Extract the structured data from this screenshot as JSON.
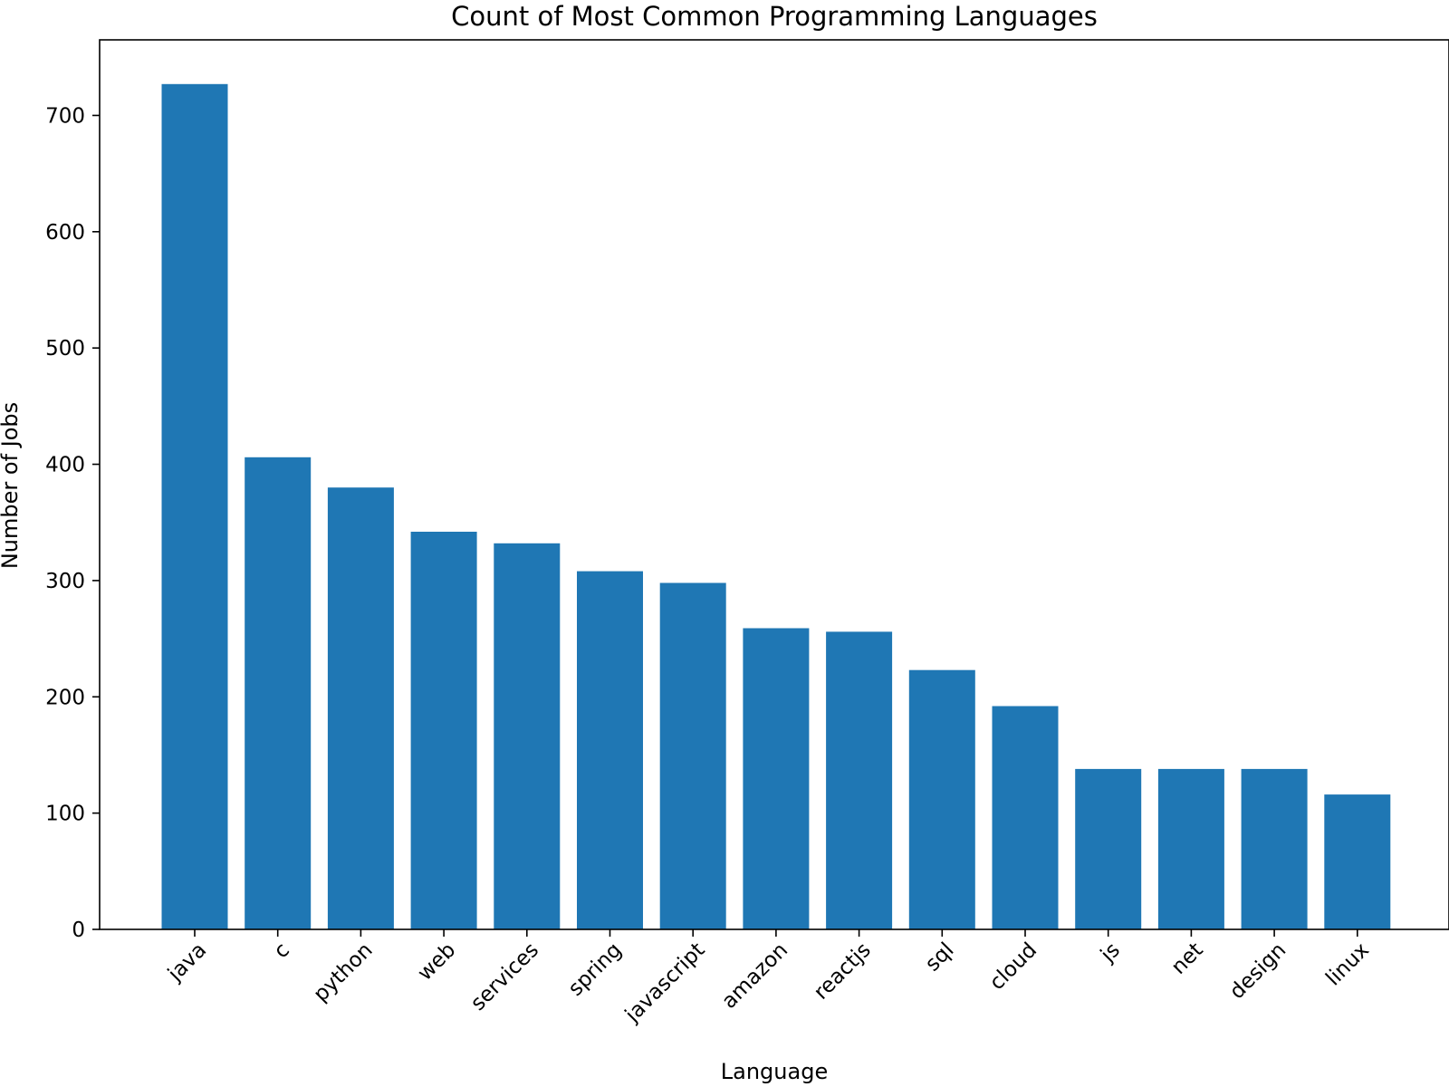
{
  "chart_data": {
    "type": "bar",
    "title": "Count of Most Common Programming Languages",
    "xlabel": "Language",
    "ylabel": "Number of Jobs",
    "categories": [
      "java",
      "c",
      "python",
      "web",
      "services",
      "spring",
      "javascript",
      "amazon",
      "reactjs",
      "sql",
      "cloud",
      "js",
      "net",
      "design",
      "linux"
    ],
    "values": [
      727,
      406,
      380,
      342,
      332,
      308,
      298,
      259,
      256,
      223,
      192,
      138,
      138,
      138,
      116
    ],
    "ylim": [
      0,
      765
    ],
    "yticks": [
      0,
      100,
      200,
      300,
      400,
      500,
      600,
      700
    ],
    "grid": false,
    "bar_color": "#1f77b4",
    "xtick_rotation": -45
  }
}
